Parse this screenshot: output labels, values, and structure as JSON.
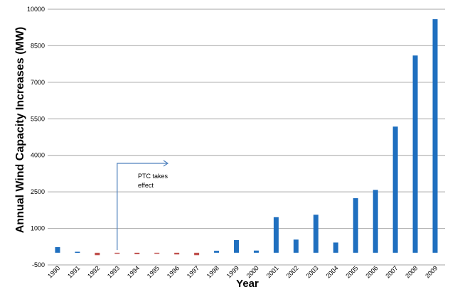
{
  "chart_data": {
    "type": "bar",
    "title": "",
    "xlabel": "Year",
    "ylabel": "Annual Wind Capacity Increases (MW)",
    "ylim": [
      -500,
      10000
    ],
    "yticks": [
      "-500",
      "1000",
      "2500",
      "4000",
      "5500",
      "7000",
      "8500",
      "10000"
    ],
    "grid": "horizontal",
    "categories": [
      "1990",
      "1991",
      "1992",
      "1993",
      "1994",
      "1995",
      "1996",
      "1997",
      "1998",
      "1999",
      "2000",
      "2001",
      "2002",
      "2003",
      "2004",
      "2005",
      "2006",
      "2007",
      "2008",
      "2009"
    ],
    "values": [
      230,
      40,
      -100,
      -40,
      -60,
      -40,
      -70,
      -100,
      80,
      520,
      90,
      1460,
      540,
      1560,
      420,
      2240,
      2580,
      5180,
      8100,
      9590
    ],
    "colors": {
      "positive": "#1f6fbf",
      "negative": "#c0504d",
      "grid": "#a6a6a6",
      "annotation": "#4f81bd"
    },
    "annotation": {
      "text_line1": "PTC takes",
      "text_line2": "effect",
      "at_category": "1993"
    }
  }
}
